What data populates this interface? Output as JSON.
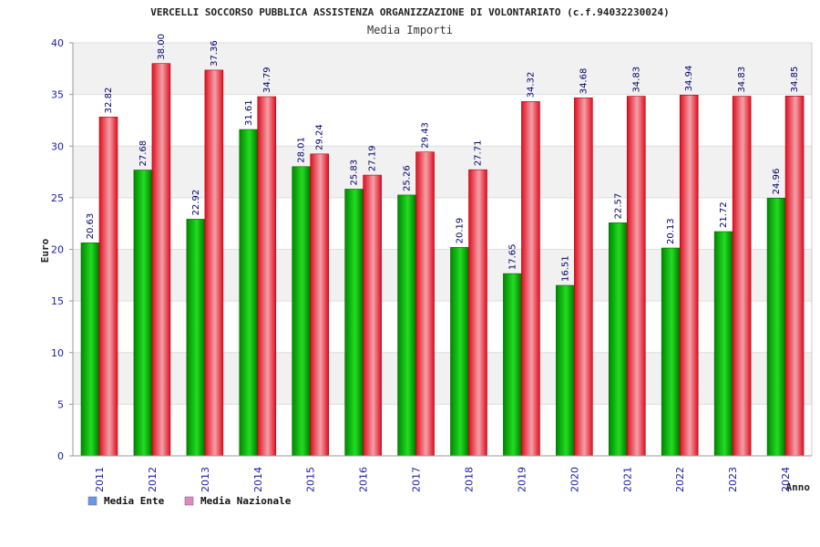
{
  "chart_data": {
    "type": "bar",
    "title": "VERCELLI SOCCORSO PUBBLICA ASSISTENZA ORGANIZZAZIONE DI VOLONTARIATO (c.f.94032230024)",
    "subtitle": "Media Importi",
    "xlabel": "Anno",
    "ylabel": "Euro",
    "ylim": [
      0,
      40
    ],
    "yticks": [
      "0",
      "5",
      "10",
      "15",
      "20",
      "25",
      "30",
      "35",
      "40"
    ],
    "grid": true,
    "legend_position": "bottom-left",
    "categories": [
      "2011",
      "2012",
      "2013",
      "2014",
      "2015",
      "2016",
      "2017",
      "2018",
      "2019",
      "2020",
      "2021",
      "2022",
      "2023",
      "2024"
    ],
    "series": [
      {
        "name": "Media Ente",
        "color": "#00a000",
        "legend_color": "#6699ee",
        "values": [
          20.63,
          27.68,
          22.92,
          31.61,
          28.01,
          25.83,
          25.26,
          20.19,
          17.65,
          16.51,
          22.57,
          20.13,
          21.72,
          24.96
        ],
        "labels": [
          "20.63",
          "27.68",
          "22.92",
          "31.61",
          "28.01",
          "25.83",
          "25.26",
          "20.19",
          "17.65",
          "16.51",
          "22.57",
          "20.13",
          "21.72",
          "24.96"
        ]
      },
      {
        "name": "Media Nazionale",
        "color": "#e8202a",
        "legend_color": "#e088c0",
        "values": [
          32.82,
          38.0,
          37.36,
          34.79,
          29.24,
          27.19,
          29.43,
          27.71,
          34.32,
          34.68,
          34.83,
          34.94,
          34.83,
          34.85
        ],
        "labels": [
          "32.82",
          "38.00",
          "37.36",
          "34.79",
          "29.24",
          "27.19",
          "29.43",
          "27.71",
          "34.32",
          "34.68",
          "34.83",
          "34.94",
          "34.83",
          "34.85"
        ]
      }
    ]
  }
}
